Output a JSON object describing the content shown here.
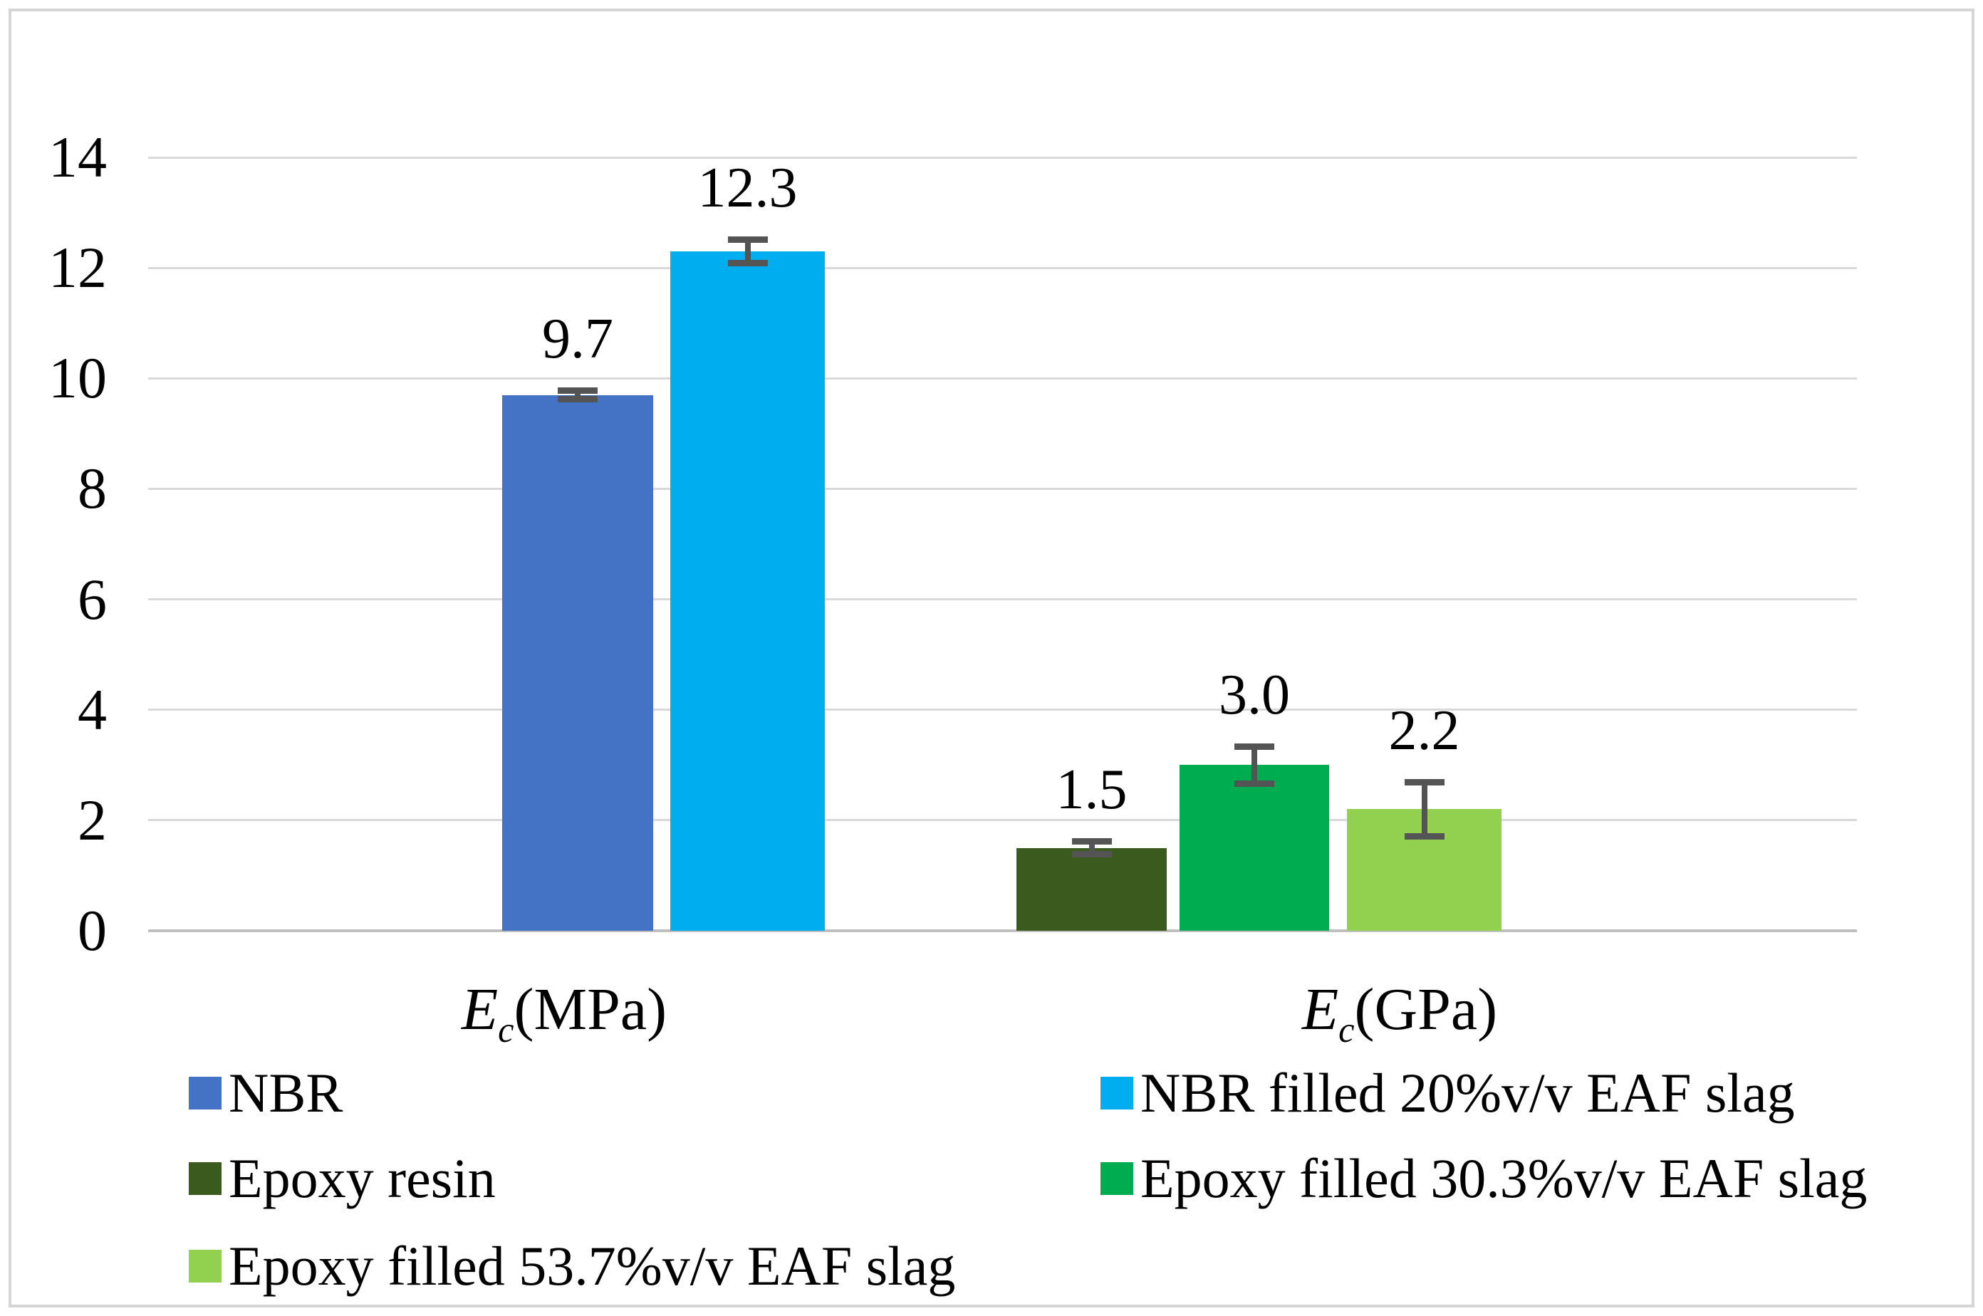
{
  "chart_data": {
    "type": "bar",
    "title": "",
    "categories": [
      {
        "display": "Ec(MPa)",
        "label_base": "E",
        "label_sub": "c",
        "label_unit": "(MPa)"
      },
      {
        "display": "Ec(GPa)",
        "label_base": "E",
        "label_sub": "c",
        "label_unit": "(GPa)"
      }
    ],
    "y_axis": {
      "min": 0,
      "max": 14,
      "tick_step": 2,
      "ticks": [
        0,
        2,
        4,
        6,
        8,
        10,
        12,
        14
      ]
    },
    "grid": true,
    "bars": [
      {
        "series": "NBR",
        "category": "Ec(MPa)",
        "value": 9.7,
        "data_label": "9.7",
        "error": 0.14,
        "color": "#4473C6"
      },
      {
        "series": "NBR filled 20%v/v EAF slag",
        "category": "Ec(MPa)",
        "value": 12.3,
        "data_label": "12.3",
        "error": 0.27,
        "color": "#00ADEF"
      },
      {
        "series": "Epoxy resin",
        "category": "Ec(GPa)",
        "value": 1.5,
        "data_label": "1.5",
        "error": 0.17,
        "color": "#3A5A1E"
      },
      {
        "series": "Epoxy filled 30.3%v/v EAF slag",
        "category": "Ec(GPa)",
        "value": 3.0,
        "data_label": "3.0",
        "error": 0.39,
        "color": "#00AC50"
      },
      {
        "series": "Epoxy filled 53.7%v/v EAF slag",
        "category": "Ec(GPa)",
        "value": 2.2,
        "data_label": "2.2",
        "error": 0.55,
        "color": "#92D150"
      }
    ],
    "legend": {
      "position": "bottom",
      "items": [
        {
          "label": "NBR",
          "color": "#4473C6"
        },
        {
          "label": "NBR filled 20%v/v EAF slag",
          "color": "#00ADEF"
        },
        {
          "label": "Epoxy resin",
          "color": "#3A5A1E"
        },
        {
          "label": "Epoxy filled 30.3%v/v EAF slag",
          "color": "#00AC50"
        },
        {
          "label": "Epoxy filled 53.7%v/v EAF slag",
          "color": "#92D150"
        }
      ]
    },
    "colors": {
      "gridline": "#D9D9D9",
      "baseline": "#BFBFBF",
      "error_bar": "#545454",
      "border": "#D6D6D6",
      "background": "#FFFFFF",
      "text": "#000000"
    }
  }
}
